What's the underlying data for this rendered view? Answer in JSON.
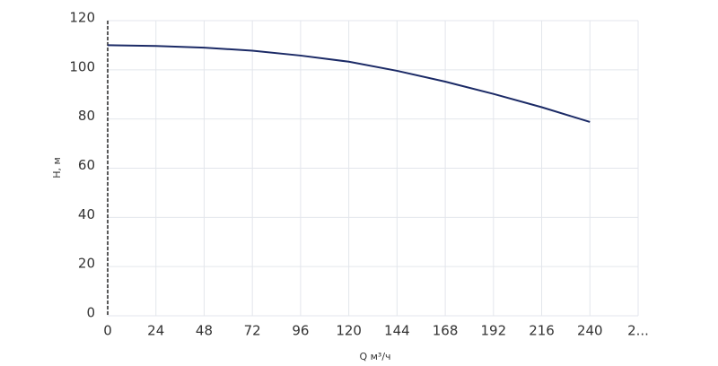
{
  "chart_data": {
    "type": "line",
    "x_label": "Q м³/ч",
    "y_label": "H, м",
    "series": [
      {
        "color": "#1b2a66",
        "x": [
          0,
          24,
          48,
          72,
          96,
          120,
          144,
          168,
          192,
          216,
          240
        ],
        "values": [
          110,
          109.7,
          109,
          107.8,
          105.8,
          103.3,
          99.6,
          95.2,
          90.2,
          84.8,
          78.8
        ]
      }
    ],
    "xlim": [
      0,
      264
    ],
    "xticks": [
      0,
      24,
      48,
      72,
      96,
      120,
      144,
      168,
      192,
      216,
      240,
      {
        "value": 264,
        "label": "2..."
      }
    ],
    "ylim": [
      0,
      120
    ],
    "yticks": [
      0,
      20,
      40,
      60,
      80,
      100,
      120
    ],
    "grid": true
  }
}
